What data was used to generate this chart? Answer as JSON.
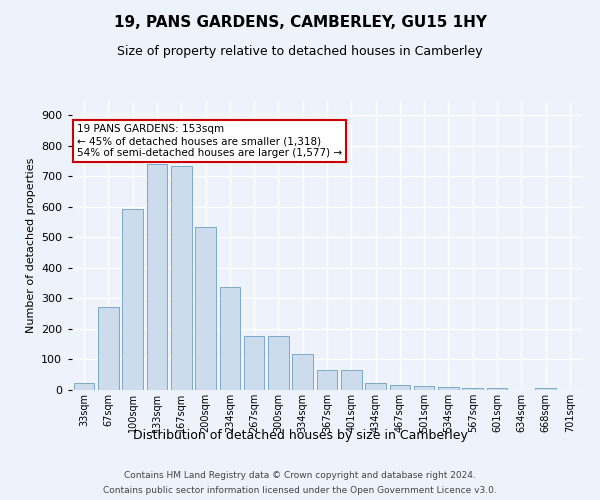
{
  "title": "19, PANS GARDENS, CAMBERLEY, GU15 1HY",
  "subtitle": "Size of property relative to detached houses in Camberley",
  "xlabel": "Distribution of detached houses by size in Camberley",
  "ylabel": "Number of detached properties",
  "bar_color": "#ccdcec",
  "bar_edge_color": "#7aaac8",
  "background_color": "#eef2fa",
  "grid_color": "#ffffff",
  "categories": [
    "33sqm",
    "67sqm",
    "100sqm",
    "133sqm",
    "167sqm",
    "200sqm",
    "234sqm",
    "267sqm",
    "300sqm",
    "334sqm",
    "367sqm",
    "401sqm",
    "434sqm",
    "467sqm",
    "501sqm",
    "534sqm",
    "567sqm",
    "601sqm",
    "634sqm",
    "668sqm",
    "701sqm"
  ],
  "values": [
    22,
    272,
    593,
    740,
    735,
    535,
    338,
    178,
    178,
    117,
    67,
    67,
    22,
    15,
    12,
    10,
    8,
    7,
    0,
    8,
    0
  ],
  "annotation_title": "19 PANS GARDENS: 153sqm",
  "annotation_line1": "← 45% of detached houses are smaller (1,318)",
  "annotation_line2": "54% of semi-detached houses are larger (1,577) →",
  "annotation_box_color": "#ffffff",
  "annotation_box_edge": "#cc0000",
  "ylim": [
    0,
    950
  ],
  "yticks": [
    0,
    100,
    200,
    300,
    400,
    500,
    600,
    700,
    800,
    900
  ],
  "footnote1": "Contains HM Land Registry data © Crown copyright and database right 2024.",
  "footnote2": "Contains public sector information licensed under the Open Government Licence v3.0."
}
